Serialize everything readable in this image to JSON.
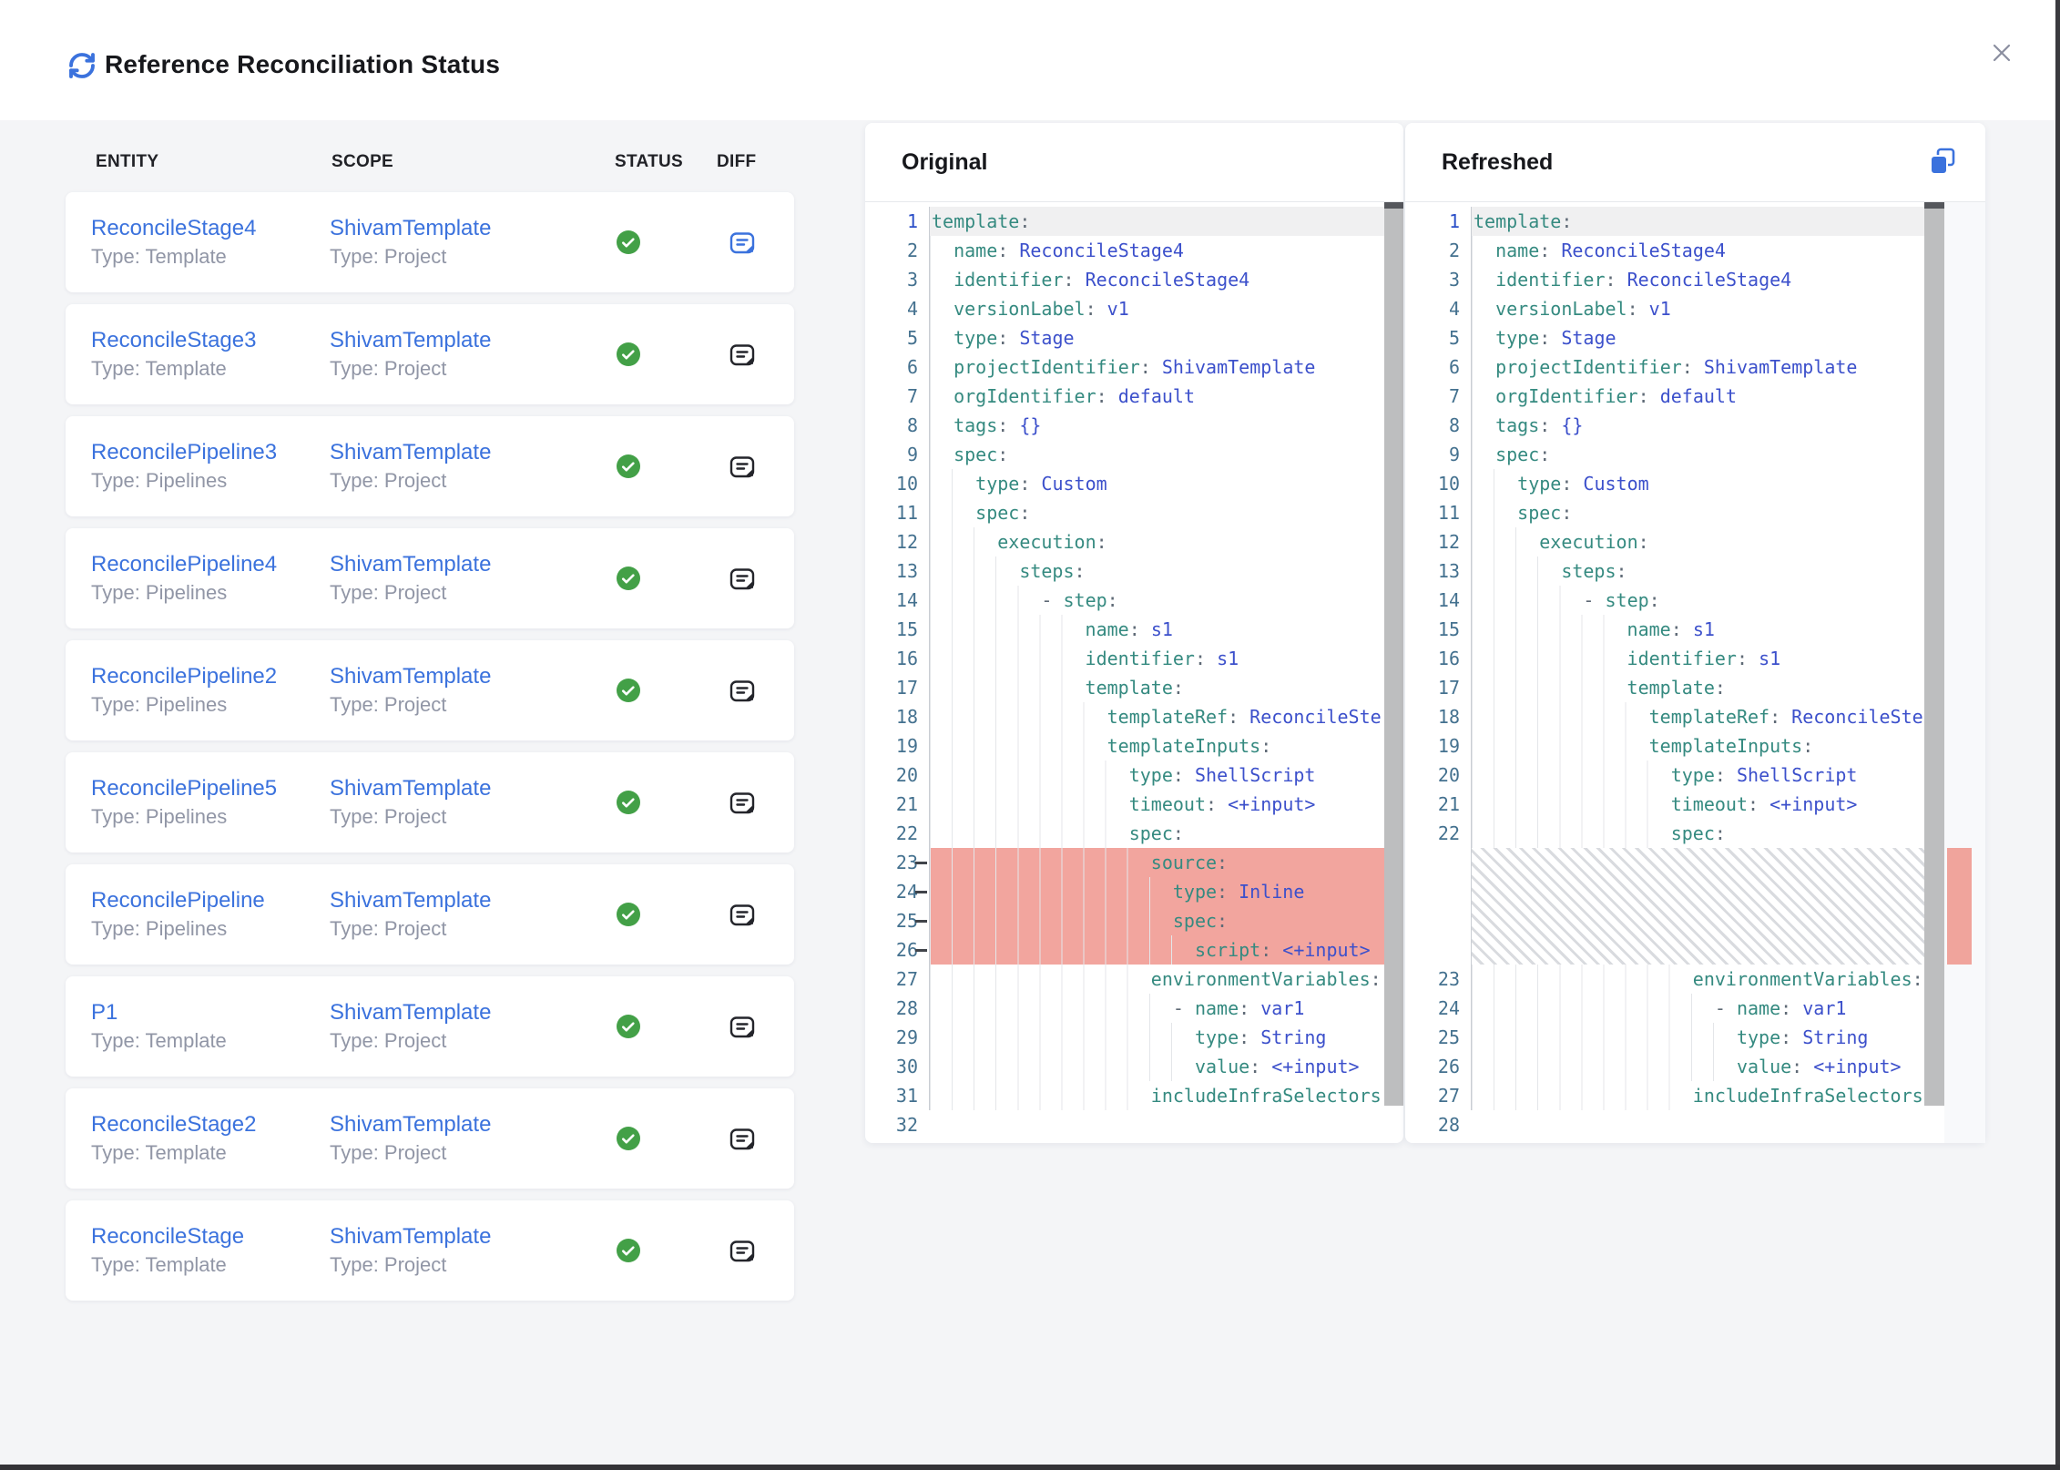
{
  "header": {
    "title": "Reference Reconciliation Status"
  },
  "table": {
    "columns": [
      "ENTITY",
      "SCOPE",
      "STATUS",
      "DIFF"
    ],
    "rows": [
      {
        "entity": "ReconcileStage4",
        "entity_type": "Type: Template",
        "scope": "ShivamTemplate",
        "scope_type": "Type: Project",
        "status": "success",
        "diff_active": true
      },
      {
        "entity": "ReconcileStage3",
        "entity_type": "Type: Template",
        "scope": "ShivamTemplate",
        "scope_type": "Type: Project",
        "status": "success",
        "diff_active": false
      },
      {
        "entity": "ReconcilePipeline3",
        "entity_type": "Type: Pipelines",
        "scope": "ShivamTemplate",
        "scope_type": "Type: Project",
        "status": "success",
        "diff_active": false
      },
      {
        "entity": "ReconcilePipeline4",
        "entity_type": "Type: Pipelines",
        "scope": "ShivamTemplate",
        "scope_type": "Type: Project",
        "status": "success",
        "diff_active": false
      },
      {
        "entity": "ReconcilePipeline2",
        "entity_type": "Type: Pipelines",
        "scope": "ShivamTemplate",
        "scope_type": "Type: Project",
        "status": "success",
        "diff_active": false
      },
      {
        "entity": "ReconcilePipeline5",
        "entity_type": "Type: Pipelines",
        "scope": "ShivamTemplate",
        "scope_type": "Type: Project",
        "status": "success",
        "diff_active": false
      },
      {
        "entity": "ReconcilePipeline",
        "entity_type": "Type: Pipelines",
        "scope": "ShivamTemplate",
        "scope_type": "Type: Project",
        "status": "success",
        "diff_active": false
      },
      {
        "entity": "P1",
        "entity_type": "Type: Template",
        "scope": "ShivamTemplate",
        "scope_type": "Type: Project",
        "status": "success",
        "diff_active": false
      },
      {
        "entity": "ReconcileStage2",
        "entity_type": "Type: Template",
        "scope": "ShivamTemplate",
        "scope_type": "Type: Project",
        "status": "success",
        "diff_active": false
      },
      {
        "entity": "ReconcileStage",
        "entity_type": "Type: Template",
        "scope": "ShivamTemplate",
        "scope_type": "Type: Project",
        "status": "success",
        "diff_active": false
      }
    ]
  },
  "panels": {
    "original": {
      "title": "Original",
      "lines": [
        {
          "n": 1,
          "i": 0,
          "s": [
            [
              "k",
              "template"
            ],
            [
              "p",
              ":"
            ]
          ]
        },
        {
          "n": 2,
          "i": 2,
          "s": [
            [
              "k",
              "name"
            ],
            [
              "p",
              ": "
            ],
            [
              "v",
              "ReconcileStage4"
            ]
          ]
        },
        {
          "n": 3,
          "i": 2,
          "s": [
            [
              "k",
              "identifier"
            ],
            [
              "p",
              ": "
            ],
            [
              "v",
              "ReconcileStage4"
            ]
          ]
        },
        {
          "n": 4,
          "i": 2,
          "s": [
            [
              "k",
              "versionLabel"
            ],
            [
              "p",
              ": "
            ],
            [
              "v",
              "v1"
            ]
          ]
        },
        {
          "n": 5,
          "i": 2,
          "s": [
            [
              "k",
              "type"
            ],
            [
              "p",
              ": "
            ],
            [
              "v",
              "Stage"
            ]
          ]
        },
        {
          "n": 6,
          "i": 2,
          "s": [
            [
              "k",
              "projectIdentifier"
            ],
            [
              "p",
              ": "
            ],
            [
              "v",
              "ShivamTemplate"
            ]
          ]
        },
        {
          "n": 7,
          "i": 2,
          "s": [
            [
              "k",
              "orgIdentifier"
            ],
            [
              "p",
              ": "
            ],
            [
              "v",
              "default"
            ]
          ]
        },
        {
          "n": 8,
          "i": 2,
          "s": [
            [
              "k",
              "tags"
            ],
            [
              "p",
              ": "
            ],
            [
              "v",
              "{}"
            ]
          ]
        },
        {
          "n": 9,
          "i": 2,
          "s": [
            [
              "k",
              "spec"
            ],
            [
              "p",
              ":"
            ]
          ]
        },
        {
          "n": 10,
          "i": 4,
          "s": [
            [
              "k",
              "type"
            ],
            [
              "p",
              ": "
            ],
            [
              "v",
              "Custom"
            ]
          ]
        },
        {
          "n": 11,
          "i": 4,
          "s": [
            [
              "k",
              "spec"
            ],
            [
              "p",
              ":"
            ]
          ]
        },
        {
          "n": 12,
          "i": 6,
          "s": [
            [
              "k",
              "execution"
            ],
            [
              "p",
              ":"
            ]
          ]
        },
        {
          "n": 13,
          "i": 8,
          "s": [
            [
              "k",
              "steps"
            ],
            [
              "p",
              ":"
            ]
          ]
        },
        {
          "n": 14,
          "i": 10,
          "s": [
            [
              "d",
              "- "
            ],
            [
              "k",
              "step"
            ],
            [
              "p",
              ":"
            ]
          ]
        },
        {
          "n": 15,
          "i": 14,
          "s": [
            [
              "k",
              "name"
            ],
            [
              "p",
              ": "
            ],
            [
              "v",
              "s1"
            ]
          ]
        },
        {
          "n": 16,
          "i": 14,
          "s": [
            [
              "k",
              "identifier"
            ],
            [
              "p",
              ": "
            ],
            [
              "v",
              "s1"
            ]
          ]
        },
        {
          "n": 17,
          "i": 14,
          "s": [
            [
              "k",
              "template"
            ],
            [
              "p",
              ":"
            ]
          ]
        },
        {
          "n": 18,
          "i": 16,
          "s": [
            [
              "k",
              "templateRef"
            ],
            [
              "p",
              ": "
            ],
            [
              "v",
              "ReconcileSte"
            ]
          ]
        },
        {
          "n": 19,
          "i": 16,
          "s": [
            [
              "k",
              "templateInputs"
            ],
            [
              "p",
              ":"
            ]
          ]
        },
        {
          "n": 20,
          "i": 18,
          "s": [
            [
              "k",
              "type"
            ],
            [
              "p",
              ": "
            ],
            [
              "v",
              "ShellScript"
            ]
          ]
        },
        {
          "n": 21,
          "i": 18,
          "s": [
            [
              "k",
              "timeout"
            ],
            [
              "p",
              ": "
            ],
            [
              "v",
              "<+input>"
            ]
          ]
        },
        {
          "n": 22,
          "i": 18,
          "s": [
            [
              "k",
              "spec"
            ],
            [
              "p",
              ":"
            ]
          ]
        },
        {
          "n": 23,
          "i": 20,
          "r": true,
          "s": [
            [
              "k",
              "source"
            ],
            [
              "p",
              ":"
            ]
          ]
        },
        {
          "n": 24,
          "i": 22,
          "r": true,
          "s": [
            [
              "k",
              "type"
            ],
            [
              "p",
              ": "
            ],
            [
              "v",
              "Inline"
            ]
          ]
        },
        {
          "n": 25,
          "i": 22,
          "r": true,
          "s": [
            [
              "k",
              "spec"
            ],
            [
              "p",
              ":"
            ]
          ]
        },
        {
          "n": 26,
          "i": 24,
          "r": true,
          "s": [
            [
              "k",
              "script"
            ],
            [
              "p",
              ": "
            ],
            [
              "v",
              "<+input>"
            ]
          ]
        },
        {
          "n": 27,
          "i": 20,
          "s": [
            [
              "k",
              "environmentVariables"
            ],
            [
              "p",
              ":"
            ]
          ]
        },
        {
          "n": 28,
          "i": 22,
          "s": [
            [
              "d",
              "- "
            ],
            [
              "k",
              "name"
            ],
            [
              "p",
              ": "
            ],
            [
              "v",
              "var1"
            ]
          ]
        },
        {
          "n": 29,
          "i": 24,
          "s": [
            [
              "k",
              "type"
            ],
            [
              "p",
              ": "
            ],
            [
              "v",
              "String"
            ]
          ]
        },
        {
          "n": 30,
          "i": 24,
          "s": [
            [
              "k",
              "value"
            ],
            [
              "p",
              ": "
            ],
            [
              "v",
              "<+input>"
            ]
          ]
        },
        {
          "n": 31,
          "i": 20,
          "s": [
            [
              "k",
              "includeInfraSelectors"
            ]
          ]
        },
        {
          "n": 32,
          "i": 0,
          "s": []
        }
      ]
    },
    "refreshed": {
      "title": "Refreshed",
      "lines": [
        {
          "n": 1,
          "i": 0,
          "s": [
            [
              "k",
              "template"
            ],
            [
              "p",
              ":"
            ]
          ]
        },
        {
          "n": 2,
          "i": 2,
          "s": [
            [
              "k",
              "name"
            ],
            [
              "p",
              ": "
            ],
            [
              "v",
              "ReconcileStage4"
            ]
          ]
        },
        {
          "n": 3,
          "i": 2,
          "s": [
            [
              "k",
              "identifier"
            ],
            [
              "p",
              ": "
            ],
            [
              "v",
              "ReconcileStage4"
            ]
          ]
        },
        {
          "n": 4,
          "i": 2,
          "s": [
            [
              "k",
              "versionLabel"
            ],
            [
              "p",
              ": "
            ],
            [
              "v",
              "v1"
            ]
          ]
        },
        {
          "n": 5,
          "i": 2,
          "s": [
            [
              "k",
              "type"
            ],
            [
              "p",
              ": "
            ],
            [
              "v",
              "Stage"
            ]
          ]
        },
        {
          "n": 6,
          "i": 2,
          "s": [
            [
              "k",
              "projectIdentifier"
            ],
            [
              "p",
              ": "
            ],
            [
              "v",
              "ShivamTemplate"
            ]
          ]
        },
        {
          "n": 7,
          "i": 2,
          "s": [
            [
              "k",
              "orgIdentifier"
            ],
            [
              "p",
              ": "
            ],
            [
              "v",
              "default"
            ]
          ]
        },
        {
          "n": 8,
          "i": 2,
          "s": [
            [
              "k",
              "tags"
            ],
            [
              "p",
              ": "
            ],
            [
              "v",
              "{}"
            ]
          ]
        },
        {
          "n": 9,
          "i": 2,
          "s": [
            [
              "k",
              "spec"
            ],
            [
              "p",
              ":"
            ]
          ]
        },
        {
          "n": 10,
          "i": 4,
          "s": [
            [
              "k",
              "type"
            ],
            [
              "p",
              ": "
            ],
            [
              "v",
              "Custom"
            ]
          ]
        },
        {
          "n": 11,
          "i": 4,
          "s": [
            [
              "k",
              "spec"
            ],
            [
              "p",
              ":"
            ]
          ]
        },
        {
          "n": 12,
          "i": 6,
          "s": [
            [
              "k",
              "execution"
            ],
            [
              "p",
              ":"
            ]
          ]
        },
        {
          "n": 13,
          "i": 8,
          "s": [
            [
              "k",
              "steps"
            ],
            [
              "p",
              ":"
            ]
          ]
        },
        {
          "n": 14,
          "i": 10,
          "s": [
            [
              "d",
              "- "
            ],
            [
              "k",
              "step"
            ],
            [
              "p",
              ":"
            ]
          ]
        },
        {
          "n": 15,
          "i": 14,
          "s": [
            [
              "k",
              "name"
            ],
            [
              "p",
              ": "
            ],
            [
              "v",
              "s1"
            ]
          ]
        },
        {
          "n": 16,
          "i": 14,
          "s": [
            [
              "k",
              "identifier"
            ],
            [
              "p",
              ": "
            ],
            [
              "v",
              "s1"
            ]
          ]
        },
        {
          "n": 17,
          "i": 14,
          "s": [
            [
              "k",
              "template"
            ],
            [
              "p",
              ":"
            ]
          ]
        },
        {
          "n": 18,
          "i": 16,
          "s": [
            [
              "k",
              "templateRef"
            ],
            [
              "p",
              ": "
            ],
            [
              "v",
              "ReconcileSte"
            ]
          ]
        },
        {
          "n": 19,
          "i": 16,
          "s": [
            [
              "k",
              "templateInputs"
            ],
            [
              "p",
              ":"
            ]
          ]
        },
        {
          "n": 20,
          "i": 18,
          "s": [
            [
              "k",
              "type"
            ],
            [
              "p",
              ": "
            ],
            [
              "v",
              "ShellScript"
            ]
          ]
        },
        {
          "n": 21,
          "i": 18,
          "s": [
            [
              "k",
              "timeout"
            ],
            [
              "p",
              ": "
            ],
            [
              "v",
              "<+input>"
            ]
          ]
        },
        {
          "n": 22,
          "i": 18,
          "s": [
            [
              "k",
              "spec"
            ],
            [
              "p",
              ":"
            ]
          ]
        },
        {
          "hatch": 4
        },
        {
          "n": 23,
          "i": 20,
          "s": [
            [
              "k",
              "environmentVariables"
            ],
            [
              "p",
              ":"
            ]
          ]
        },
        {
          "n": 24,
          "i": 22,
          "s": [
            [
              "d",
              "- "
            ],
            [
              "k",
              "name"
            ],
            [
              "p",
              ": "
            ],
            [
              "v",
              "var1"
            ]
          ]
        },
        {
          "n": 25,
          "i": 24,
          "s": [
            [
              "k",
              "type"
            ],
            [
              "p",
              ": "
            ],
            [
              "v",
              "String"
            ]
          ]
        },
        {
          "n": 26,
          "i": 24,
          "s": [
            [
              "k",
              "value"
            ],
            [
              "p",
              ": "
            ],
            [
              "v",
              "<+input>"
            ]
          ]
        },
        {
          "n": 27,
          "i": 20,
          "s": [
            [
              "k",
              "includeInfraSelectors"
            ]
          ]
        },
        {
          "n": 28,
          "i": 0,
          "s": []
        }
      ]
    }
  },
  "colors": {
    "accent": "#3b72dd",
    "success": "#43a047",
    "removed_highlight": "#f2a59e",
    "code_key": "#358a80",
    "code_value": "#3c50cb",
    "line_number": "#44718f"
  }
}
